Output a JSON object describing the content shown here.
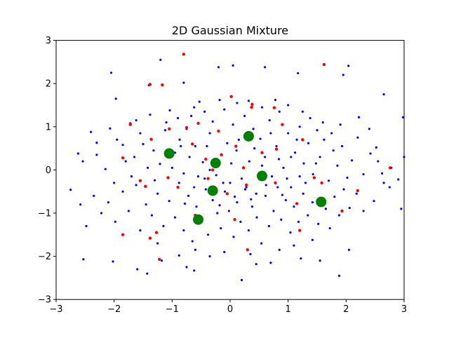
{
  "chart_data": {
    "type": "scatter",
    "title": "2D Gaussian Mixture",
    "xlabel": "",
    "ylabel": "",
    "xlim": [
      -3,
      3
    ],
    "ylim": [
      -3,
      3
    ],
    "x_ticks": [
      -3,
      -2,
      -1,
      0,
      1,
      2,
      3
    ],
    "y_ticks": [
      -3,
      -2,
      -1,
      0,
      1,
      2,
      3
    ],
    "x_tick_labels": [
      "−3",
      "−2",
      "−1",
      "0",
      "1",
      "2",
      "3"
    ],
    "y_tick_labels": [
      "−3",
      "−2",
      "−1",
      "0",
      "1",
      "2",
      "3"
    ],
    "grid": false,
    "series": [
      {
        "color": "#0000ff",
        "marker": "small-dot",
        "points": [
          [
            -0.8,
            2.02
          ],
          [
            -1.2,
            2.55
          ],
          [
            -0.2,
            2.38
          ],
          [
            0.6,
            2.38
          ],
          [
            0.05,
            2.42
          ],
          [
            1.95,
            2.2
          ],
          [
            2.04,
            2.41
          ],
          [
            -2.05,
            2.25
          ],
          [
            -1.97,
            1.65
          ],
          [
            -1.4,
            1.96
          ],
          [
            1.17,
            2.24
          ],
          [
            2.22,
            1.22
          ],
          [
            2.65,
            1.75
          ],
          [
            2.98,
            1.22
          ],
          [
            -2.62,
            0.38
          ],
          [
            -2.54,
            0.2
          ],
          [
            -2.4,
            0.88
          ],
          [
            -2.3,
            0.63
          ],
          [
            -2.15,
            0.02
          ],
          [
            -2.07,
            0.96
          ],
          [
            -1.85,
            0.58
          ],
          [
            -1.72,
            1.08
          ],
          [
            -1.55,
            0.85
          ],
          [
            -1.65,
            0.3
          ],
          [
            -1.42,
            0.05
          ],
          [
            -1.3,
            -0.24
          ],
          [
            -1.21,
            0.14
          ],
          [
            -1.12,
            0.92
          ],
          [
            -1.04,
            1.38
          ],
          [
            -0.95,
            0.4
          ],
          [
            -0.87,
            0.7
          ],
          [
            -0.8,
            -0.08
          ],
          [
            -0.75,
            0.95
          ],
          [
            -0.67,
            1.25
          ],
          [
            -0.6,
            0.55
          ],
          [
            -0.53,
            1.58
          ],
          [
            -0.47,
            0.18
          ],
          [
            -0.42,
            -0.45
          ],
          [
            -0.35,
            0.85
          ],
          [
            -0.3,
            1.12
          ],
          [
            -0.24,
            -0.12
          ],
          [
            -0.15,
            0.36
          ],
          [
            -0.1,
            1.4
          ],
          [
            -0.05,
            0.62
          ],
          [
            0.0,
            -0.3
          ],
          [
            0.05,
            1.05
          ],
          [
            0.11,
            0.45
          ],
          [
            0.2,
            -0.2
          ],
          [
            0.25,
            1.25
          ],
          [
            0.33,
            0.2
          ],
          [
            0.4,
            0.95
          ],
          [
            0.45,
            -0.55
          ],
          [
            0.52,
            0.72
          ],
          [
            0.6,
            0.3
          ],
          [
            0.68,
            1.15
          ],
          [
            0.72,
            -0.15
          ],
          [
            0.8,
            0.55
          ],
          [
            0.85,
            1.35
          ],
          [
            0.92,
            0.05
          ],
          [
            1.0,
            0.85
          ],
          [
            1.05,
            -0.4
          ],
          [
            1.12,
            0.4
          ],
          [
            1.2,
            1.0
          ],
          [
            1.27,
            0.15
          ],
          [
            1.35,
            0.62
          ],
          [
            1.43,
            -0.1
          ],
          [
            1.5,
            0.92
          ],
          [
            1.55,
            0.3
          ],
          [
            1.62,
            0.7
          ],
          [
            1.7,
            -0.25
          ],
          [
            1.78,
            0.45
          ],
          [
            1.85,
            0.1
          ],
          [
            1.93,
            0.55
          ],
          [
            2.02,
            -0.18
          ],
          [
            2.1,
            0.22
          ],
          [
            2.2,
            0.75
          ],
          [
            2.3,
            -0.1
          ],
          [
            2.42,
            0.38
          ],
          [
            2.52,
            0.52
          ],
          [
            2.62,
            -0.08
          ],
          [
            2.78,
            0.05
          ],
          [
            2.9,
            -0.22
          ],
          [
            3.0,
            0.3
          ],
          [
            -2.75,
            -0.46
          ],
          [
            -2.58,
            -0.8
          ],
          [
            -2.48,
            -1.3
          ],
          [
            -2.35,
            -0.6
          ],
          [
            -2.22,
            -1.0
          ],
          [
            -2.1,
            -0.75
          ],
          [
            -1.98,
            -1.2
          ],
          [
            -1.85,
            -0.5
          ],
          [
            -1.75,
            -0.95
          ],
          [
            -1.62,
            -0.35
          ],
          [
            -1.55,
            -1.4
          ],
          [
            -1.45,
            -0.8
          ],
          [
            -1.35,
            -1.05
          ],
          [
            -1.25,
            -0.55
          ],
          [
            -1.15,
            -1.3
          ],
          [
            -1.05,
            -0.72
          ],
          [
            -0.95,
            -1.1
          ],
          [
            -0.88,
            -0.3
          ],
          [
            -0.8,
            -1.4
          ],
          [
            -0.72,
            -0.6
          ],
          [
            -0.65,
            -1.65
          ],
          [
            -0.58,
            -0.85
          ],
          [
            -0.5,
            -1.2
          ],
          [
            -0.44,
            -0.2
          ],
          [
            -0.38,
            -1.5
          ],
          [
            -0.3,
            -0.7
          ],
          [
            -0.22,
            -1.0
          ],
          [
            -0.16,
            -1.35
          ],
          [
            -0.09,
            -0.5
          ],
          [
            -0.02,
            -0.95
          ],
          [
            0.06,
            -1.55
          ],
          [
            0.12,
            -0.75
          ],
          [
            0.18,
            -1.2
          ],
          [
            0.26,
            -0.45
          ],
          [
            0.32,
            -1.4
          ],
          [
            0.38,
            -0.85
          ],
          [
            0.46,
            -1.1
          ],
          [
            0.54,
            -1.7
          ],
          [
            0.61,
            -0.6
          ],
          [
            0.67,
            -1.3
          ],
          [
            0.75,
            -0.95
          ],
          [
            0.82,
            -0.4
          ],
          [
            0.88,
            -1.15
          ],
          [
            0.96,
            -0.7
          ],
          [
            1.04,
            -1.45
          ],
          [
            1.1,
            -0.85
          ],
          [
            1.18,
            -1.2
          ],
          [
            1.26,
            -0.55
          ],
          [
            1.34,
            -1.05
          ],
          [
            1.42,
            -0.75
          ],
          [
            1.52,
            -1.25
          ],
          [
            1.65,
            -0.9
          ],
          [
            1.72,
            -1.35
          ],
          [
            1.8,
            -0.62
          ],
          [
            1.88,
            -1.05
          ],
          [
            1.96,
            -0.45
          ],
          [
            2.06,
            -0.88
          ],
          [
            2.18,
            -0.55
          ],
          [
            2.3,
            -0.95
          ],
          [
            2.48,
            -0.72
          ],
          [
            2.65,
            -0.3
          ],
          [
            2.95,
            -0.9
          ],
          [
            -2.53,
            -2.07
          ],
          [
            -2.02,
            -2.12
          ],
          [
            -1.6,
            -2.3
          ],
          [
            -1.43,
            -2.4
          ],
          [
            -1.18,
            -2.1
          ],
          [
            -0.88,
            -1.98
          ],
          [
            -0.75,
            -2.25
          ],
          [
            -0.62,
            -2.33
          ],
          [
            -0.35,
            -2.0
          ],
          [
            -0.1,
            -1.9
          ],
          [
            0.2,
            -2.55
          ],
          [
            0.35,
            -1.95
          ],
          [
            0.45,
            -2.18
          ],
          [
            0.7,
            -2.15
          ],
          [
            1.1,
            -1.75
          ],
          [
            1.22,
            -2.05
          ],
          [
            1.55,
            -2.1
          ],
          [
            1.88,
            -2.45
          ],
          [
            2.05,
            -1.85
          ],
          [
            1.42,
            -1.62
          ],
          [
            -0.6,
            -1.85
          ],
          [
            -1.25,
            -1.7
          ],
          [
            0.85,
            -1.85
          ],
          [
            -1.95,
            0.7
          ],
          [
            -1.8,
            0.2
          ],
          [
            -1.5,
            0.6
          ],
          [
            -1.32,
            0.45
          ],
          [
            -1.0,
            0.05
          ],
          [
            -0.7,
            0.3
          ],
          [
            -0.55,
            -0.15
          ],
          [
            -0.4,
            0.55
          ],
          [
            -0.25,
            0.2
          ],
          [
            -0.12,
            -0.3
          ],
          [
            0.02,
            0.15
          ],
          [
            0.15,
            0.7
          ],
          [
            0.28,
            -0.4
          ],
          [
            0.42,
            0.5
          ],
          [
            0.58,
            -0.05
          ],
          [
            0.7,
            0.85
          ],
          [
            0.84,
            0.25
          ],
          [
            0.98,
            -0.2
          ],
          [
            1.15,
            0.7
          ],
          [
            1.3,
            -0.3
          ],
          [
            1.48,
            0.15
          ],
          [
            1.6,
            1.1
          ],
          [
            1.75,
            0.85
          ],
          [
            1.9,
            1.05
          ],
          [
            -1.1,
            1.1
          ],
          [
            -0.9,
            1.2
          ],
          [
            -0.62,
            1.45
          ],
          [
            -0.44,
            1.35
          ],
          [
            -0.18,
            1.62
          ],
          [
            0.12,
            1.55
          ],
          [
            0.32,
            1.6
          ],
          [
            0.55,
            1.45
          ],
          [
            0.78,
            1.62
          ],
          [
            1.0,
            1.5
          ],
          [
            1.25,
            1.35
          ],
          [
            1.38,
            1.2
          ],
          [
            -1.38,
            1.28
          ],
          [
            -1.62,
            1.15
          ],
          [
            -0.78,
            -0.78
          ],
          [
            -0.62,
            -0.4
          ],
          [
            -0.18,
            -0.82
          ],
          [
            0.08,
            -0.62
          ],
          [
            0.36,
            -0.68
          ],
          [
            0.62,
            -0.35
          ],
          [
            0.9,
            -0.58
          ],
          [
            1.2,
            -0.15
          ],
          [
            -1.7,
            -0.15
          ],
          [
            -2.0,
            -0.3
          ],
          [
            -2.3,
            0.35
          ],
          [
            2.4,
            0.95
          ],
          [
            2.55,
            0.2
          ],
          [
            2.75,
            -0.4
          ],
          [
            -0.35,
            0.0
          ],
          [
            0.55,
            0.1
          ],
          [
            -0.85,
            0.55
          ],
          [
            1.05,
            0.3
          ]
        ]
      },
      {
        "color": "#ff0000",
        "marker": "small-dot",
        "points": [
          [
            -0.8,
            2.68
          ],
          [
            1.62,
            2.44
          ],
          [
            -1.38,
            1.98
          ],
          [
            -1.17,
            1.97
          ],
          [
            -1.72,
            1.05
          ],
          [
            -1.05,
            0.95
          ],
          [
            -0.75,
            0.98
          ],
          [
            -0.55,
            1.08
          ],
          [
            0.02,
            1.7
          ],
          [
            0.37,
            1.45
          ],
          [
            0.38,
            1.52
          ],
          [
            0.76,
            1.44
          ],
          [
            0.9,
            1.05
          ],
          [
            -0.2,
            0.9
          ],
          [
            0.1,
            0.55
          ],
          [
            -0.15,
            0.35
          ],
          [
            -0.65,
            0.6
          ],
          [
            -1.36,
            0.71
          ],
          [
            -0.42,
            0.25
          ],
          [
            0.23,
            0.05
          ],
          [
            0.55,
            0.4
          ],
          [
            0.8,
            0.48
          ],
          [
            1.25,
            0.7
          ],
          [
            -1.85,
            0.28
          ],
          [
            -1.55,
            -0.25
          ],
          [
            -1.46,
            -0.38
          ],
          [
            -1.07,
            -0.18
          ],
          [
            -0.9,
            -0.4
          ],
          [
            -0.38,
            -0.2
          ],
          [
            -0.05,
            -0.55
          ],
          [
            0.28,
            -0.35
          ],
          [
            0.78,
            -0.3
          ],
          [
            1.15,
            -0.78
          ],
          [
            1.45,
            -0.18
          ],
          [
            1.58,
            -0.3
          ],
          [
            2.2,
            -0.48
          ],
          [
            1.93,
            -0.95
          ],
          [
            -1.27,
            -1.45
          ],
          [
            -1.38,
            -1.58
          ],
          [
            -1.22,
            -2.07
          ],
          [
            -1.85,
            -1.5
          ],
          [
            0.08,
            -1.15
          ],
          [
            0.3,
            -1.85
          ],
          [
            -0.6,
            -1.05
          ],
          [
            1.2,
            -1.4
          ],
          [
            2.76,
            0.05
          ],
          [
            -0.3,
            0.0
          ],
          [
            0.6,
            -0.15
          ]
        ]
      },
      {
        "color": "#008000",
        "marker": "large-circle",
        "points": [
          [
            -1.05,
            0.38
          ],
          [
            -0.25,
            0.16
          ],
          [
            0.32,
            0.78
          ],
          [
            0.55,
            -0.14
          ],
          [
            -0.3,
            -0.48
          ],
          [
            -0.55,
            -1.15
          ],
          [
            1.57,
            -0.74
          ]
        ]
      }
    ]
  }
}
